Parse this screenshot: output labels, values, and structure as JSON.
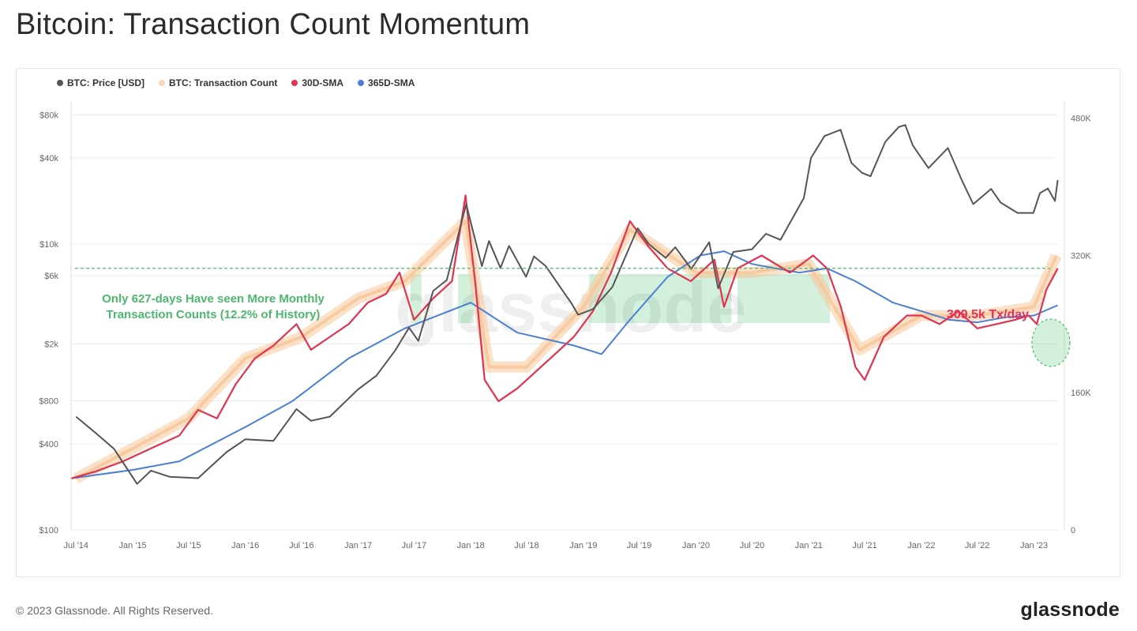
{
  "title": "Bitcoin: Transaction Count Momentum",
  "footer": {
    "copyright": "© 2023 Glassnode. All Rights Reserved.",
    "logo": "glassnode"
  },
  "watermark": "glassnode",
  "colors": {
    "price": "#555555",
    "tx": "#f7c89b",
    "sma30": "#e0334f",
    "sma365": "#4a7fd4",
    "threshold": "#4db86d",
    "highlight": "#7fd39a"
  },
  "legend": [
    {
      "label": "BTC: Price [USD]",
      "color": "#555555"
    },
    {
      "label": "BTC: Transaction Count",
      "color": "#f7d9b9"
    },
    {
      "label": "30D-SMA",
      "color": "#e0334f"
    },
    {
      "label": "365D-SMA",
      "color": "#4a7fd4"
    }
  ],
  "annotations": {
    "threshold_line1": "Only 627-days Have seen More Monthly",
    "threshold_line2": "Transaction Counts (12.2% of History)",
    "current": "309.5k Tx/day"
  },
  "chart_data": {
    "type": "line",
    "title": "Bitcoin: Transaction Count Momentum",
    "x_tick_labels": [
      "Jul '14",
      "Jan '15",
      "Jul '15",
      "Jan '16",
      "Jul '16",
      "Jan '17",
      "Jul '17",
      "Jan '18",
      "Jul '18",
      "Jan '19",
      "Jul '19",
      "Jan '20",
      "Jul '20",
      "Jan '21",
      "Jul '21",
      "Jan '22",
      "Jul '22",
      "Jan '23"
    ],
    "x_range": [
      "2014-06-15",
      "2023-03-20"
    ],
    "left_axis": {
      "scale": "log",
      "range": [
        100,
        100000
      ],
      "tick_labels": [
        "$100",
        "$400",
        "$800",
        "$2k",
        "$6k",
        "$10k",
        "$40k",
        "$80k"
      ],
      "tick_values": [
        100,
        400,
        800,
        2000,
        6000,
        10000,
        40000,
        80000
      ]
    },
    "right_axis": {
      "scale": "linear",
      "range": [
        0,
        500000
      ],
      "tick_labels": [
        "0",
        "160K",
        "320K",
        "480K"
      ],
      "tick_values": [
        0,
        160000,
        320000,
        480000
      ]
    },
    "threshold_value": 305000,
    "highlight_periods": [
      [
        "2017-11-20",
        "2018-01-10"
      ],
      [
        "2019-01-20",
        "2020-04-25"
      ],
      [
        "2020-05-15",
        "2021-03-10"
      ],
      [
        "2017-06-20",
        "2017-07-25"
      ]
    ],
    "series": [
      {
        "name": "BTC: Price [USD]",
        "axis": "left",
        "points": [
          [
            "2014-07-01",
            620
          ],
          [
            "2014-09-01",
            480
          ],
          [
            "2014-11-01",
            370
          ],
          [
            "2015-01-15",
            210
          ],
          [
            "2015-03-01",
            260
          ],
          [
            "2015-05-01",
            235
          ],
          [
            "2015-08-01",
            230
          ],
          [
            "2015-11-01",
            350
          ],
          [
            "2016-01-01",
            430
          ],
          [
            "2016-04-01",
            420
          ],
          [
            "2016-06-15",
            700
          ],
          [
            "2016-08-01",
            580
          ],
          [
            "2016-10-01",
            620
          ],
          [
            "2016-12-31",
            960
          ],
          [
            "2017-03-01",
            1200
          ],
          [
            "2017-05-01",
            1800
          ],
          [
            "2017-06-15",
            2600
          ],
          [
            "2017-07-15",
            2100
          ],
          [
            "2017-09-01",
            4700
          ],
          [
            "2017-10-15",
            5600
          ],
          [
            "2017-12-17",
            19000
          ],
          [
            "2018-02-06",
            7000
          ],
          [
            "2018-03-01",
            10500
          ],
          [
            "2018-04-07",
            6800
          ],
          [
            "2018-05-05",
            9700
          ],
          [
            "2018-06-29",
            5900
          ],
          [
            "2018-07-25",
            8200
          ],
          [
            "2018-09-01",
            7000
          ],
          [
            "2018-11-25",
            3800
          ],
          [
            "2018-12-15",
            3200
          ],
          [
            "2019-02-01",
            3500
          ],
          [
            "2019-04-05",
            5000
          ],
          [
            "2019-06-26",
            12900
          ],
          [
            "2019-08-01",
            10000
          ],
          [
            "2019-09-25",
            8000
          ],
          [
            "2019-10-26",
            9500
          ],
          [
            "2019-12-17",
            6700
          ],
          [
            "2020-02-13",
            10300
          ],
          [
            "2020-03-13",
            4900
          ],
          [
            "2020-05-01",
            8800
          ],
          [
            "2020-07-01",
            9200
          ],
          [
            "2020-08-15",
            11800
          ],
          [
            "2020-10-01",
            10700
          ],
          [
            "2020-12-16",
            21000
          ],
          [
            "2021-01-08",
            40000
          ],
          [
            "2021-02-21",
            57000
          ],
          [
            "2021-04-14",
            63000
          ],
          [
            "2021-05-19",
            37000
          ],
          [
            "2021-06-22",
            31500
          ],
          [
            "2021-07-20",
            29800
          ],
          [
            "2021-09-06",
            52000
          ],
          [
            "2021-10-20",
            66000
          ],
          [
            "2021-11-10",
            68000
          ],
          [
            "2021-12-04",
            49000
          ],
          [
            "2022-01-24",
            34000
          ],
          [
            "2022-03-28",
            47000
          ],
          [
            "2022-05-12",
            28000
          ],
          [
            "2022-06-18",
            19000
          ],
          [
            "2022-08-15",
            24300
          ],
          [
            "2022-09-15",
            19500
          ],
          [
            "2022-11-09",
            16500
          ],
          [
            "2022-12-30",
            16500
          ],
          [
            "2023-01-20",
            22700
          ],
          [
            "2023-02-15",
            24500
          ],
          [
            "2023-03-10",
            20000
          ],
          [
            "2023-03-19",
            28000
          ]
        ]
      },
      {
        "name": "BTC: Transaction Count",
        "axis": "right",
        "points": [
          [
            "2014-07-01",
            60000
          ],
          [
            "2015-01-01",
            95000
          ],
          [
            "2015-07-01",
            130000
          ],
          [
            "2016-01-01",
            200000
          ],
          [
            "2016-07-01",
            225000
          ],
          [
            "2017-01-01",
            270000
          ],
          [
            "2017-06-01",
            290000
          ],
          [
            "2017-12-15",
            360000
          ],
          [
            "2018-03-01",
            190000
          ],
          [
            "2018-07-01",
            190000
          ],
          [
            "2019-01-01",
            260000
          ],
          [
            "2019-06-01",
            350000
          ],
          [
            "2020-01-01",
            300000
          ],
          [
            "2020-07-01",
            300000
          ],
          [
            "2021-01-01",
            310000
          ],
          [
            "2021-06-15",
            210000
          ],
          [
            "2022-01-01",
            250000
          ],
          [
            "2022-07-01",
            250000
          ],
          [
            "2023-01-01",
            260000
          ],
          [
            "2023-03-15",
            320000
          ]
        ]
      },
      {
        "name": "30D-SMA",
        "axis": "right",
        "points": [
          [
            "2014-06-15",
            60000
          ],
          [
            "2014-09-01",
            68000
          ],
          [
            "2014-12-01",
            80000
          ],
          [
            "2015-03-01",
            95000
          ],
          [
            "2015-06-01",
            110000
          ],
          [
            "2015-08-01",
            140000
          ],
          [
            "2015-10-01",
            130000
          ],
          [
            "2015-12-01",
            170000
          ],
          [
            "2016-02-01",
            200000
          ],
          [
            "2016-04-01",
            215000
          ],
          [
            "2016-06-15",
            240000
          ],
          [
            "2016-08-01",
            210000
          ],
          [
            "2016-10-01",
            225000
          ],
          [
            "2016-12-01",
            240000
          ],
          [
            "2017-02-01",
            265000
          ],
          [
            "2017-04-01",
            275000
          ],
          [
            "2017-05-15",
            300000
          ],
          [
            "2017-07-01",
            245000
          ],
          [
            "2017-09-01",
            270000
          ],
          [
            "2017-11-01",
            290000
          ],
          [
            "2017-12-15",
            390000
          ],
          [
            "2018-01-15",
            290000
          ],
          [
            "2018-02-15",
            175000
          ],
          [
            "2018-04-01",
            150000
          ],
          [
            "2018-06-01",
            165000
          ],
          [
            "2018-08-01",
            185000
          ],
          [
            "2018-10-01",
            205000
          ],
          [
            "2018-12-01",
            225000
          ],
          [
            "2019-02-01",
            255000
          ],
          [
            "2019-04-01",
            300000
          ],
          [
            "2019-06-01",
            360000
          ],
          [
            "2019-08-01",
            330000
          ],
          [
            "2019-10-01",
            305000
          ],
          [
            "2019-12-15",
            290000
          ],
          [
            "2020-03-01",
            315000
          ],
          [
            "2020-04-01",
            260000
          ],
          [
            "2020-05-15",
            305000
          ],
          [
            "2020-08-01",
            320000
          ],
          [
            "2020-11-01",
            300000
          ],
          [
            "2021-01-15",
            320000
          ],
          [
            "2021-03-01",
            305000
          ],
          [
            "2021-04-15",
            260000
          ],
          [
            "2021-06-01",
            190000
          ],
          [
            "2021-07-01",
            175000
          ],
          [
            "2021-09-01",
            225000
          ],
          [
            "2021-11-15",
            250000
          ],
          [
            "2022-01-01",
            250000
          ],
          [
            "2022-03-01",
            240000
          ],
          [
            "2022-05-01",
            255000
          ],
          [
            "2022-07-01",
            235000
          ],
          [
            "2022-09-01",
            240000
          ],
          [
            "2022-11-01",
            245000
          ],
          [
            "2022-12-15",
            250000
          ],
          [
            "2023-01-10",
            240000
          ],
          [
            "2023-02-10",
            280000
          ],
          [
            "2023-03-19",
            305000
          ]
        ]
      },
      {
        "name": "365D-SMA",
        "axis": "right",
        "points": [
          [
            "2014-06-15",
            60000
          ],
          [
            "2015-01-01",
            70000
          ],
          [
            "2015-06-01",
            80000
          ],
          [
            "2016-01-01",
            120000
          ],
          [
            "2016-06-01",
            150000
          ],
          [
            "2016-12-01",
            200000
          ],
          [
            "2017-06-01",
            235000
          ],
          [
            "2018-01-01",
            265000
          ],
          [
            "2018-06-01",
            230000
          ],
          [
            "2018-12-01",
            215000
          ],
          [
            "2019-03-01",
            205000
          ],
          [
            "2019-06-01",
            245000
          ],
          [
            "2019-10-01",
            295000
          ],
          [
            "2020-01-15",
            320000
          ],
          [
            "2020-04-01",
            325000
          ],
          [
            "2020-07-01",
            310000
          ],
          [
            "2020-12-01",
            300000
          ],
          [
            "2021-03-01",
            305000
          ],
          [
            "2021-06-01",
            290000
          ],
          [
            "2021-10-01",
            265000
          ],
          [
            "2022-01-01",
            255000
          ],
          [
            "2022-04-01",
            245000
          ],
          [
            "2022-07-01",
            242000
          ],
          [
            "2022-10-01",
            248000
          ],
          [
            "2023-01-01",
            250000
          ],
          [
            "2023-03-19",
            262000
          ]
        ]
      }
    ]
  }
}
